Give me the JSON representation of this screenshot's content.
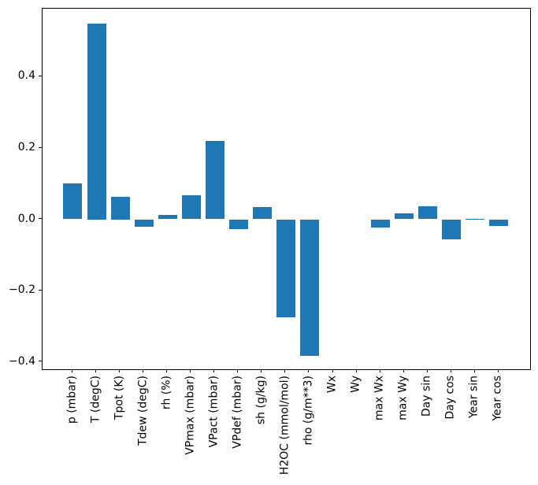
{
  "figure": {
    "background": "#ffffff",
    "spine_color": "#000000",
    "tick_color": "#000000",
    "text_color": "#000000"
  },
  "chart_data": {
    "type": "bar",
    "title": "",
    "xlabel": "",
    "ylabel": "",
    "grid": false,
    "legend": null,
    "bar_color": "#1f77b4",
    "categories": [
      "p (mbar)",
      "T (degC)",
      "Tpot (K)",
      "Tdew (degC)",
      "rh (%)",
      "VPmax (mbar)",
      "VPact (mbar)",
      "VPdef (mbar)",
      "sh (g/kg)",
      "H2OC (mmol/mol)",
      "rho (g/m**3)",
      "Wx",
      "Wy",
      "max Wx",
      "max Wy",
      "Day sin",
      "Day cos",
      "Year sin",
      "Year cos"
    ],
    "values": [
      0.1,
      0.549,
      0.064,
      -0.02,
      0.012,
      0.067,
      0.219,
      -0.027,
      0.034,
      -0.276,
      -0.384,
      0.0,
      0.0,
      -0.024,
      0.016,
      0.036,
      -0.057,
      0.002,
      -0.018
    ],
    "ylim": [
      -0.421,
      0.591
    ],
    "xlim": [
      -1.28,
      19.32
    ],
    "yticks": [
      0.4,
      0.2,
      0.0,
      -0.2,
      -0.4
    ],
    "ytick_labels": [
      "0.4",
      "0.2",
      "0.0",
      "−0.2",
      "−0.4"
    ]
  }
}
